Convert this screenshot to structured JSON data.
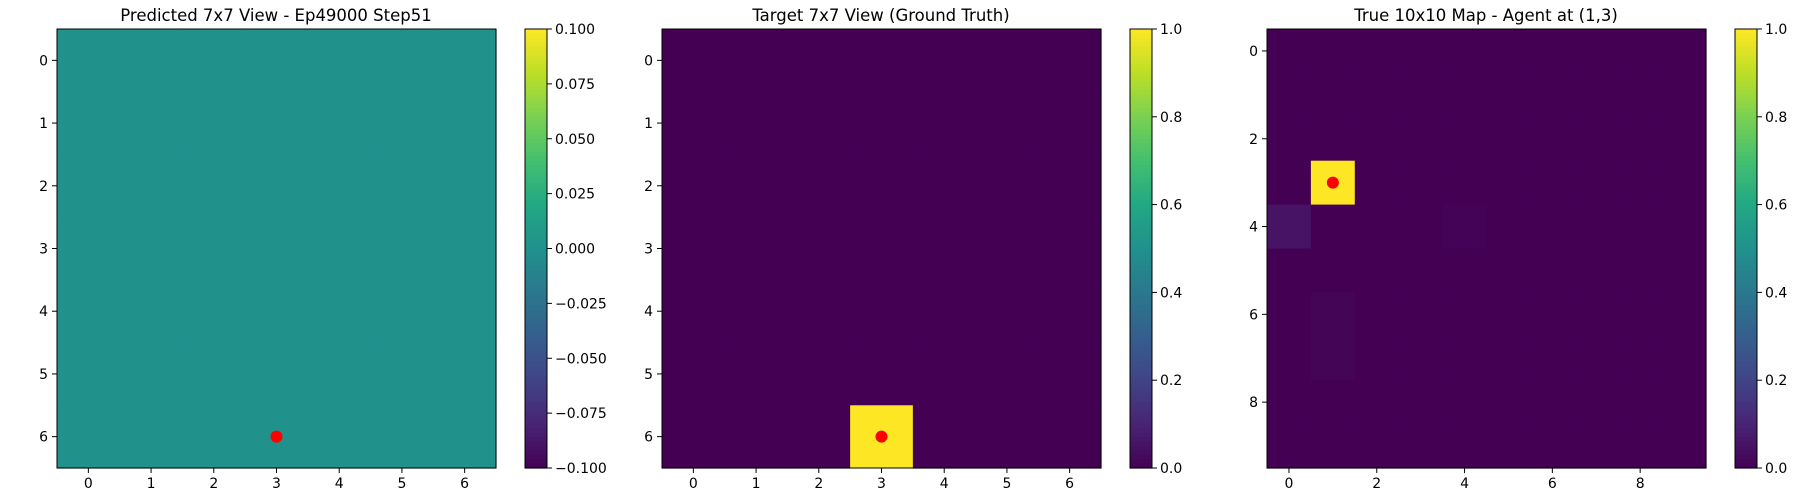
{
  "chart_data": [
    {
      "type": "heatmap",
      "title": "Predicted 7x7 View - Ep49000 Step51",
      "rows": 7,
      "cols": 7,
      "values": [
        [
          0,
          0,
          0,
          0,
          0,
          0,
          0
        ],
        [
          0,
          0,
          0,
          0,
          0,
          0,
          0
        ],
        [
          0,
          0,
          0,
          0,
          0,
          0,
          0
        ],
        [
          0,
          0,
          0,
          0,
          0,
          0,
          0
        ],
        [
          0,
          0,
          0,
          0,
          0,
          0,
          0
        ],
        [
          0,
          0,
          0,
          0,
          0,
          0,
          0
        ],
        [
          0,
          0,
          0,
          0,
          0,
          0,
          0
        ]
      ],
      "vmin": -0.1,
      "vmax": 0.1,
      "xticks": [
        "0",
        "1",
        "2",
        "3",
        "4",
        "5",
        "6"
      ],
      "yticks": [
        "0",
        "1",
        "2",
        "3",
        "4",
        "5",
        "6"
      ],
      "colorbar_ticks": [
        "0.100",
        "0.075",
        "0.050",
        "0.025",
        "0.000",
        "−0.025",
        "−0.050",
        "−0.075",
        "−0.100"
      ],
      "colorbar_tick_values": [
        0.1,
        0.075,
        0.05,
        0.025,
        0,
        -0.025,
        -0.05,
        -0.075,
        -0.1
      ],
      "marker": {
        "x": 3,
        "y": 6,
        "color": "#ff0000"
      }
    },
    {
      "type": "heatmap",
      "title": "Target 7x7 View (Ground Truth)",
      "rows": 7,
      "cols": 7,
      "values": [
        [
          0,
          0,
          0,
          0,
          0,
          0,
          0
        ],
        [
          0,
          0,
          0,
          0,
          0,
          0,
          0
        ],
        [
          0,
          0,
          0,
          0,
          0,
          0,
          0
        ],
        [
          0,
          0,
          0,
          0,
          0,
          0,
          0
        ],
        [
          0,
          0,
          0,
          0,
          0,
          0,
          0
        ],
        [
          0,
          0,
          0,
          0,
          0,
          0,
          0
        ],
        [
          0,
          0,
          0,
          1,
          0,
          0,
          0
        ]
      ],
      "vmin": 0,
      "vmax": 1,
      "xticks": [
        "0",
        "1",
        "2",
        "3",
        "4",
        "5",
        "6"
      ],
      "yticks": [
        "0",
        "1",
        "2",
        "3",
        "4",
        "5",
        "6"
      ],
      "colorbar_ticks": [
        "1.0",
        "0.8",
        "0.6",
        "0.4",
        "0.2",
        "0.0"
      ],
      "colorbar_tick_values": [
        1,
        0.8,
        0.6,
        0.4,
        0.2,
        0
      ],
      "marker": {
        "x": 3,
        "y": 6,
        "color": "#ff0000"
      }
    },
    {
      "type": "heatmap",
      "title": "True 10x10 Map - Agent at (1,3)",
      "rows": 10,
      "cols": 10,
      "values": [
        [
          0,
          0,
          0,
          0,
          0,
          0,
          0,
          0,
          0,
          0
        ],
        [
          0,
          0,
          0,
          0,
          0,
          0,
          0,
          0,
          0,
          0
        ],
        [
          0,
          0,
          0,
          0,
          0,
          0,
          0,
          0,
          0,
          0
        ],
        [
          0,
          1,
          0,
          0,
          0,
          0,
          0,
          0,
          0,
          0
        ],
        [
          0.05,
          0,
          0,
          0,
          0.005,
          0,
          0,
          0,
          0,
          0
        ],
        [
          0,
          0,
          0,
          0,
          0,
          0,
          0,
          0,
          0,
          0
        ],
        [
          0,
          0.01,
          0,
          0,
          0,
          0,
          0,
          0,
          0,
          0
        ],
        [
          0,
          0.01,
          0,
          0,
          0,
          0,
          0,
          0,
          0,
          0
        ],
        [
          0,
          0,
          0,
          0,
          0,
          0,
          0,
          0,
          0,
          0
        ],
        [
          0,
          0,
          0,
          0,
          0,
          0,
          0,
          0,
          0,
          0
        ]
      ],
      "vmin": 0,
      "vmax": 1,
      "xticks": [
        "0",
        "2",
        "4",
        "6",
        "8"
      ],
      "yticks": [
        "0",
        "2",
        "4",
        "6",
        "8"
      ],
      "tick_values": [
        0,
        2,
        4,
        6,
        8
      ],
      "colorbar_ticks": [
        "1.0",
        "0.8",
        "0.6",
        "0.4",
        "0.2",
        "0.0"
      ],
      "colorbar_tick_values": [
        1,
        0.8,
        0.6,
        0.4,
        0.2,
        0
      ],
      "marker": {
        "x": 1,
        "y": 3,
        "color": "#ff0000"
      }
    }
  ]
}
